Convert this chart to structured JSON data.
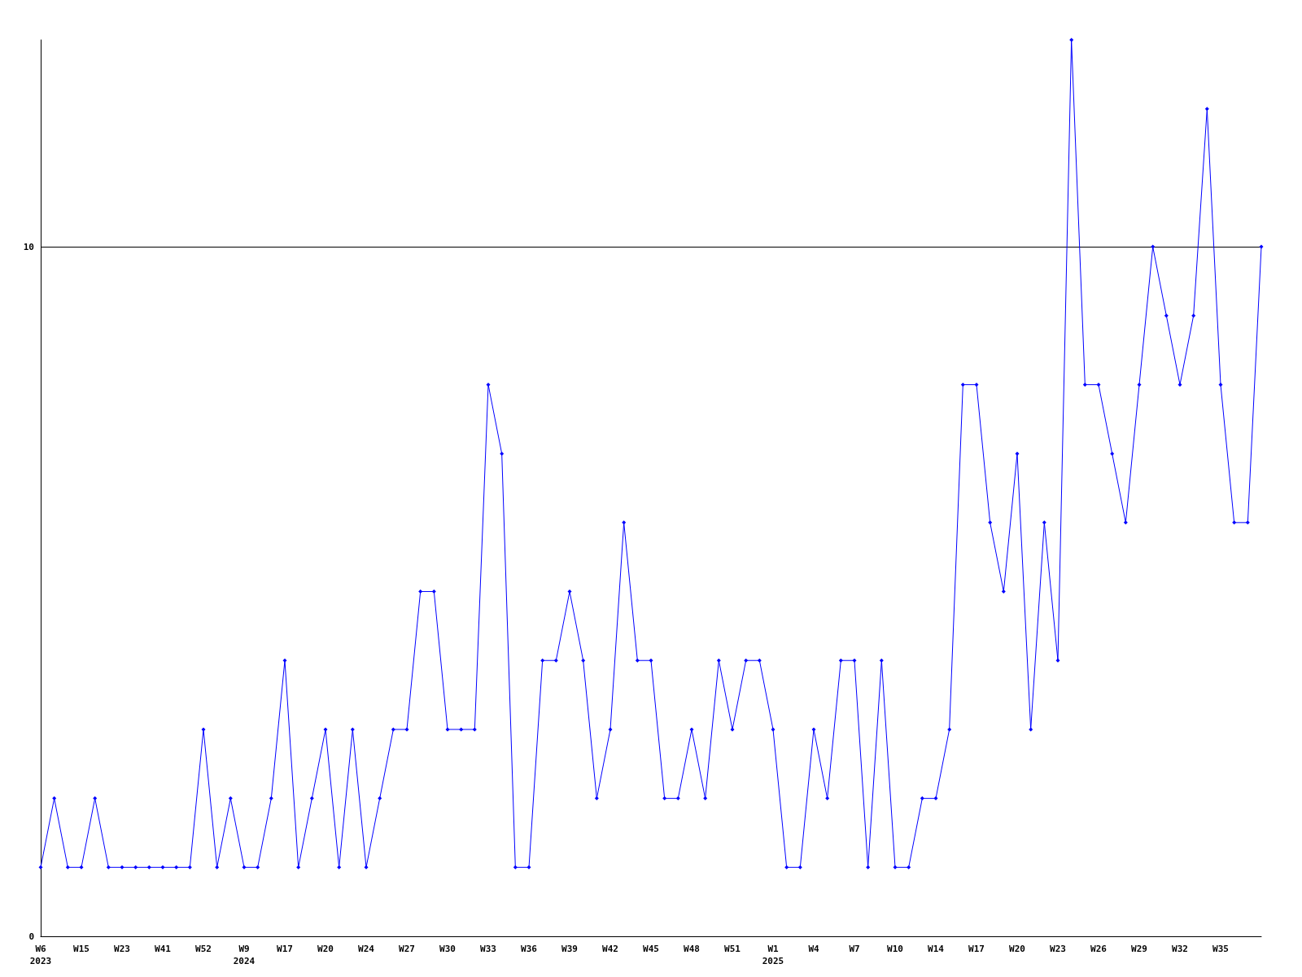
{
  "chart_data": {
    "type": "line",
    "categories": [
      "W6\n2023",
      null,
      null,
      "W15",
      null,
      null,
      "W23",
      null,
      null,
      "W41",
      null,
      null,
      "W52",
      null,
      null,
      "W9\n2024",
      null,
      null,
      "W17",
      null,
      null,
      "W20",
      null,
      null,
      "W24",
      null,
      null,
      "W27",
      null,
      null,
      "W30",
      null,
      null,
      "W33",
      null,
      null,
      "W36",
      null,
      null,
      "W39",
      null,
      null,
      "W42",
      null,
      null,
      "W45",
      null,
      null,
      "W48",
      null,
      null,
      "W51",
      null,
      null,
      "W1\n2025",
      null,
      null,
      "W4",
      null,
      null,
      "W7",
      null,
      null,
      "W10",
      null,
      null,
      "W14",
      null,
      null,
      "W17",
      null,
      null,
      "W20",
      null,
      null,
      "W23",
      null,
      null,
      "W26",
      null,
      null,
      "W29",
      null,
      null,
      "W32",
      null,
      null,
      "W35",
      null,
      null,
      null
    ],
    "series": [
      {
        "color": "#0000ff",
        "values": [
          1,
          2,
          1,
          1,
          2,
          1,
          1,
          1,
          1,
          1,
          1,
          1,
          3,
          1,
          2,
          1,
          1,
          2,
          4,
          1,
          2,
          3,
          1,
          3,
          1,
          2,
          3,
          3,
          5,
          5,
          3,
          3,
          3,
          8,
          7,
          1,
          1,
          4,
          4,
          5,
          4,
          2,
          3,
          6,
          4,
          4,
          2,
          2,
          3,
          2,
          4,
          3,
          4,
          4,
          3,
          1,
          1,
          3,
          2,
          4,
          4,
          1,
          4,
          1,
          1,
          2,
          2,
          3,
          8,
          8,
          6,
          5,
          7,
          3,
          6,
          4,
          13,
          8,
          8,
          7,
          6,
          8,
          10,
          9,
          8,
          9,
          12,
          8,
          6,
          6,
          10
        ]
      }
    ],
    "ylim": [
      0,
      13
    ],
    "yticks": [
      0,
      10
    ],
    "grid": "y",
    "marker": "diamond",
    "line_style": "solid"
  }
}
